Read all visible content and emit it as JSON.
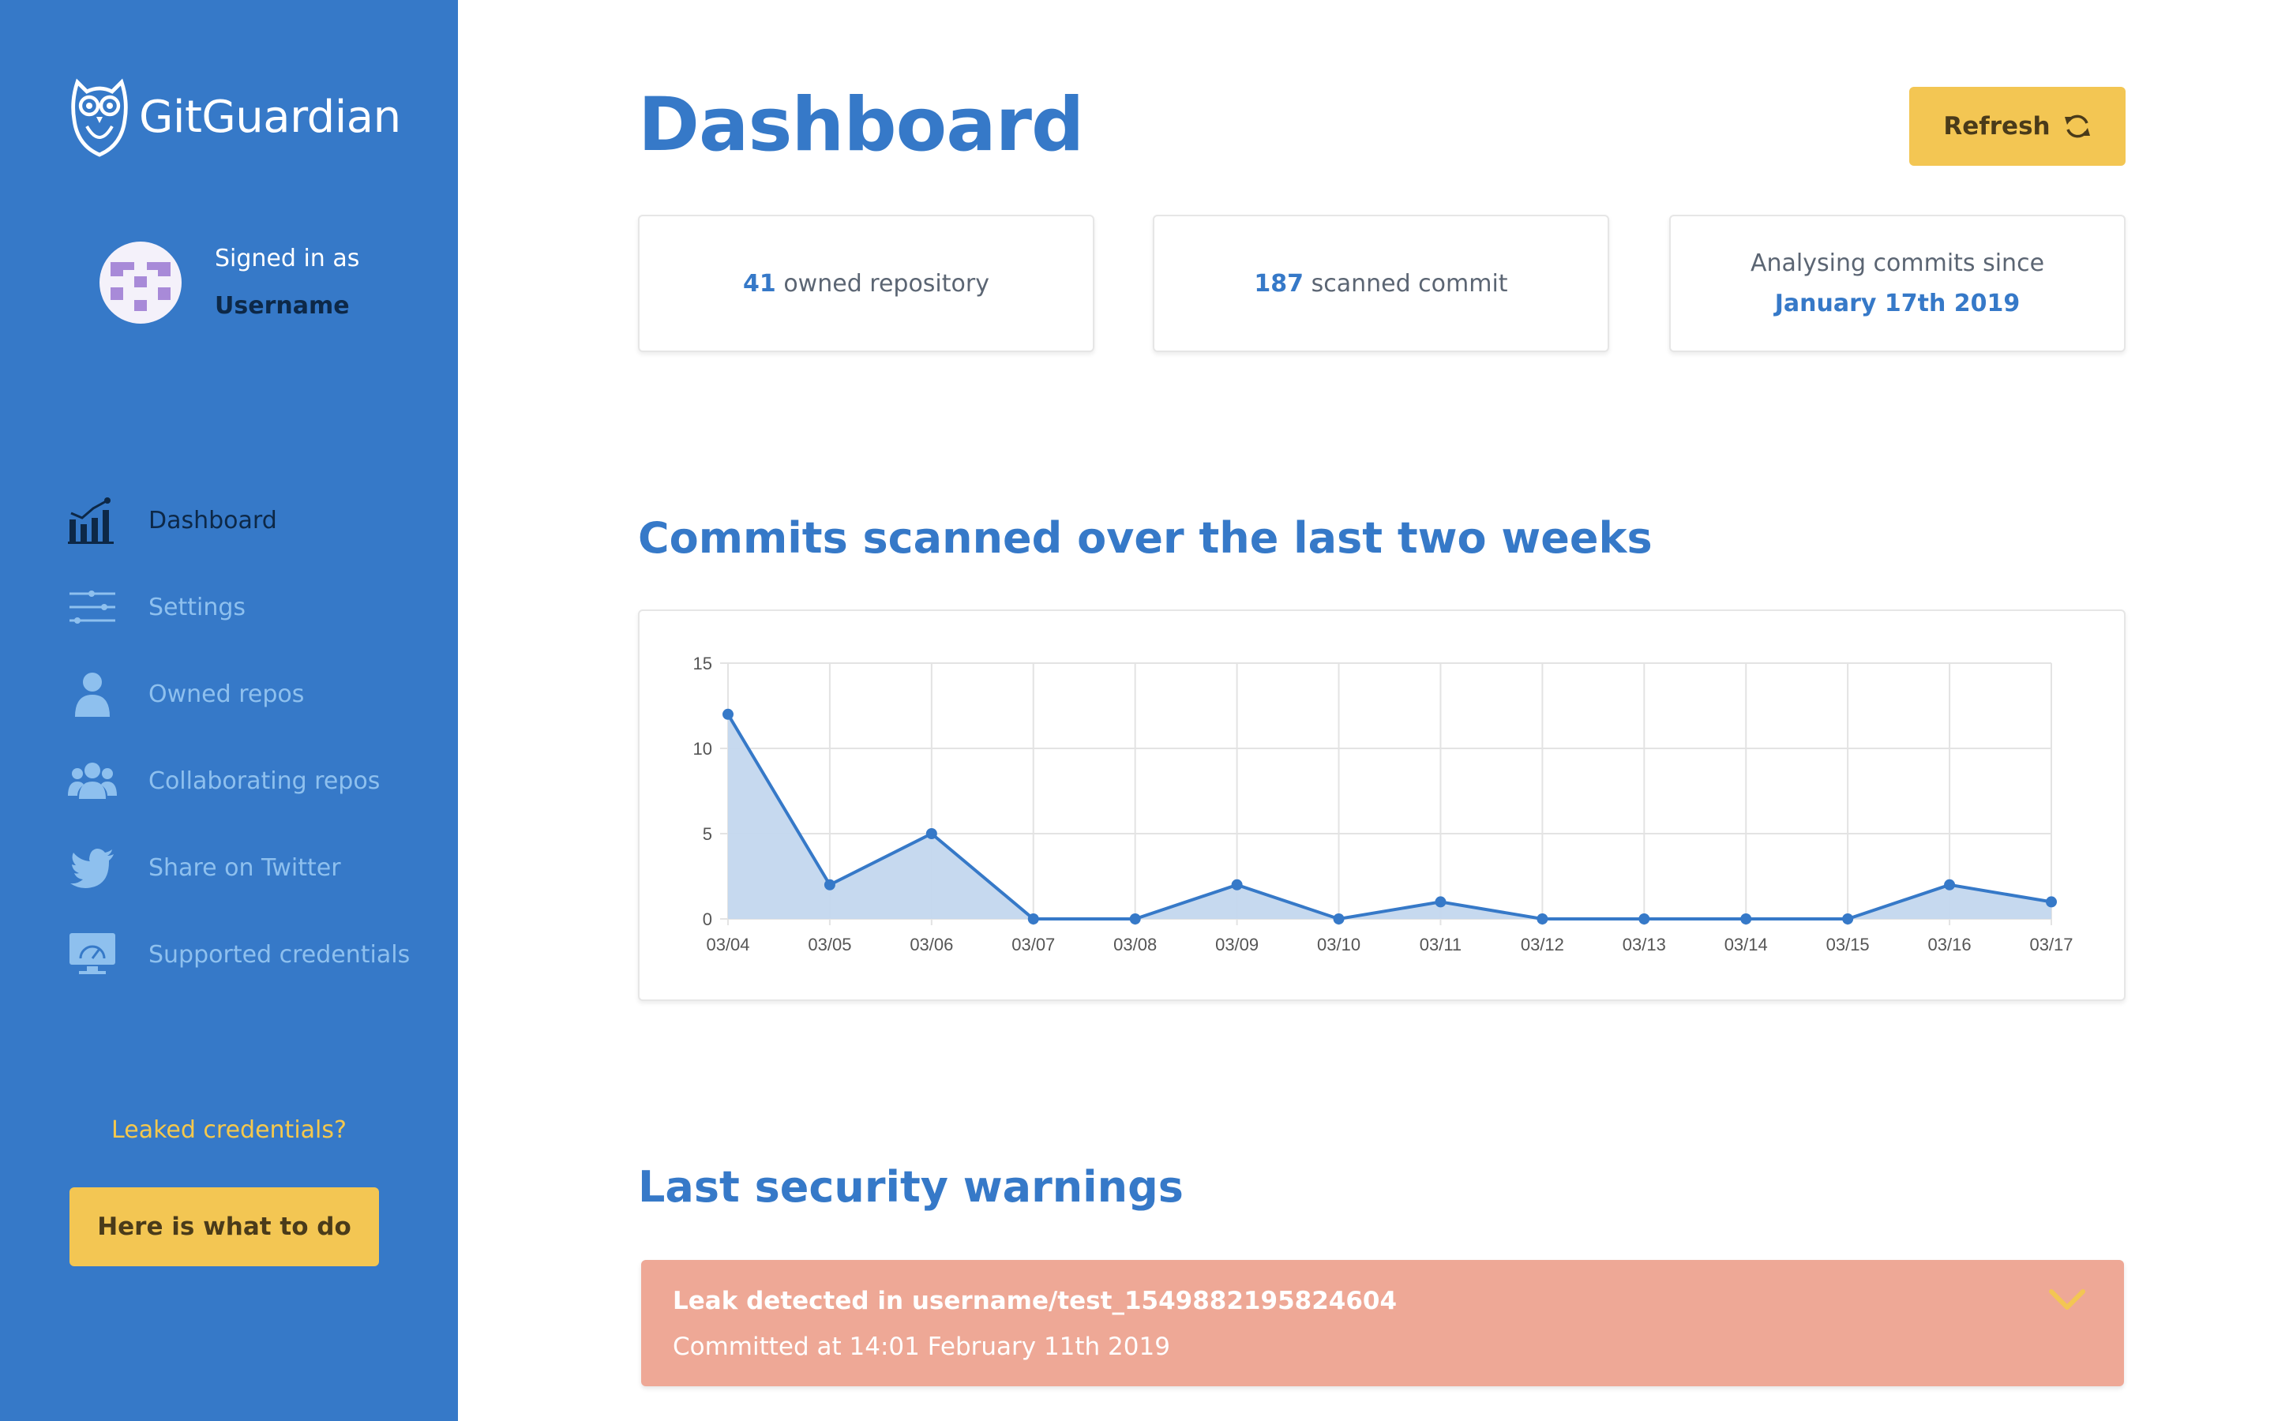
{
  "app": {
    "name": "GitGuardian"
  },
  "user": {
    "signed_in_label": "Signed in as",
    "username": "Username"
  },
  "nav": {
    "items": [
      {
        "label": "Dashboard",
        "icon": "bar-chart-icon",
        "active": true
      },
      {
        "label": "Settings",
        "icon": "sliders-icon",
        "active": false
      },
      {
        "label": "Owned repos",
        "icon": "user-icon",
        "active": false
      },
      {
        "label": "Collaborating repos",
        "icon": "users-icon",
        "active": false
      },
      {
        "label": "Share on Twitter",
        "icon": "twitter-icon",
        "active": false
      },
      {
        "label": "Supported credentials",
        "icon": "dashboard-monitor-icon",
        "active": false
      }
    ]
  },
  "sidebar_footer": {
    "question": "Leaked credentials?",
    "cta_label": "Here is what to do"
  },
  "header": {
    "title": "Dashboard",
    "refresh_label": "Refresh"
  },
  "stats": {
    "repos_count": "41",
    "repos_label": "owned repository",
    "commits_count": "187",
    "commits_label": "scanned commit",
    "since_label": "Analysing commits since",
    "since_date": "January 17th 2019"
  },
  "chart_section": {
    "title": "Commits scanned over the last two weeks"
  },
  "chart_data": {
    "type": "area",
    "categories": [
      "03/04",
      "03/05",
      "03/06",
      "03/07",
      "03/08",
      "03/09",
      "03/10",
      "03/11",
      "03/12",
      "03/13",
      "03/14",
      "03/15",
      "03/16",
      "03/17"
    ],
    "values": [
      12,
      2,
      5,
      0,
      0,
      2,
      0,
      1,
      0,
      0,
      0,
      0,
      2,
      1
    ],
    "yticks": [
      0,
      5,
      10,
      15
    ],
    "ylim": [
      0,
      15
    ],
    "grid": true,
    "colors": {
      "line": "#3679c8",
      "fill": "#c3d7ee"
    }
  },
  "warnings_section": {
    "title": "Last security warnings"
  },
  "warnings": [
    {
      "title": "Leak detected in username/test_1549882195824604",
      "subtitle": "Committed at 14:01 February 11th 2019"
    }
  ],
  "colors": {
    "sidebar": "#3679c8",
    "accent": "#f3c653",
    "warning": "#eea896"
  }
}
